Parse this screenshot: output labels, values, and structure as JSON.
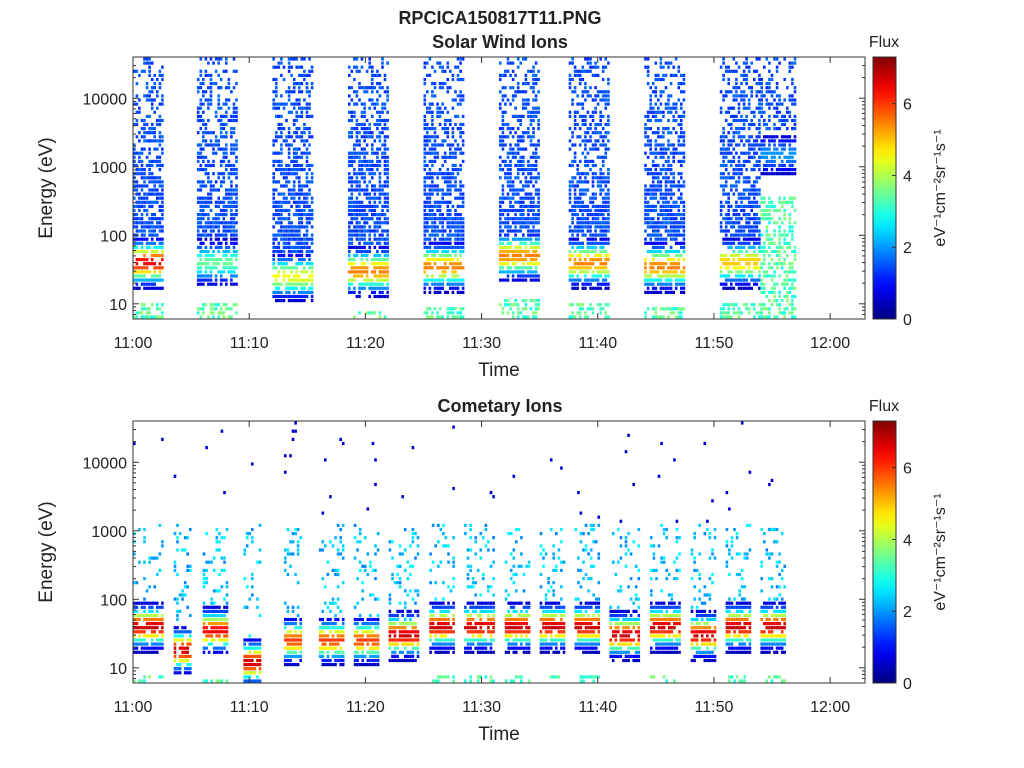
{
  "figure_title": "RPCICA150817T11.PNG",
  "chart_data": [
    {
      "type": "heatmap",
      "title": "Solar Wind Ions",
      "xlabel": "Time",
      "ylabel": "Energy (eV)",
      "y_scale": "log",
      "ylim": [
        6,
        40000
      ],
      "xlim": [
        "11:00",
        "12:03"
      ],
      "x_tick_labels": [
        "11:00",
        "11:10",
        "11:20",
        "11:30",
        "11:40",
        "11:50",
        "12:00"
      ],
      "y_tick_labels": [
        "10",
        "100",
        "1000",
        "10000"
      ],
      "colorbar": {
        "label": "Flux",
        "unit": "eV⁻¹cm⁻²sr⁻¹s⁻¹",
        "range": [
          0,
          7.3
        ],
        "ticks": [
          "0",
          "2",
          "4",
          "6"
        ],
        "colormap": "jet"
      },
      "bursts": [
        {
          "start": "11:00",
          "end": "11:02.5",
          "peak_energy_ev": 40,
          "peak_flux": 6.5
        },
        {
          "start": "11:05.5",
          "end": "11:09",
          "peak_energy_ev": 40,
          "peak_flux": 3.5
        },
        {
          "start": "11:12",
          "end": "11:15.5",
          "peak_energy_ev": 25,
          "peak_flux": 4.5
        },
        {
          "start": "11:18.5",
          "end": "11:22",
          "peak_energy_ev": 30,
          "peak_flux": 5.5
        },
        {
          "start": "11:25",
          "end": "11:28.5",
          "peak_energy_ev": 35,
          "peak_flux": 5.5
        },
        {
          "start": "11:31.5",
          "end": "11:35",
          "peak_energy_ev": 50,
          "peak_flux": 5.5
        },
        {
          "start": "11:37.5",
          "end": "11:41",
          "peak_energy_ev": 40,
          "peak_flux": 5.5
        },
        {
          "start": "11:44",
          "end": "11:47.5",
          "peak_energy_ev": 35,
          "peak_flux": 5.5
        },
        {
          "start": "11:50.5",
          "end": "11:54",
          "peak_energy_ev": 40,
          "peak_flux": 5.0
        },
        {
          "start": "11:54",
          "end": "11:57",
          "peak_energy_ev": 1500,
          "peak_flux": 2.0
        }
      ]
    },
    {
      "type": "heatmap",
      "title": "Cometary Ions",
      "xlabel": "Time",
      "ylabel": "Energy (eV)",
      "y_scale": "log",
      "ylim": [
        6,
        40000
      ],
      "xlim": [
        "11:00",
        "12:03"
      ],
      "x_tick_labels": [
        "11:00",
        "11:10",
        "11:20",
        "11:30",
        "11:40",
        "11:50",
        "12:00"
      ],
      "y_tick_labels": [
        "10",
        "100",
        "1000",
        "10000"
      ],
      "colorbar": {
        "label": "Flux",
        "unit": "eV⁻¹cm⁻²sr⁻¹s⁻¹",
        "range": [
          0,
          7.3
        ],
        "ticks": [
          "0",
          "2",
          "4",
          "6"
        ],
        "colormap": "jet"
      },
      "bursts": [
        {
          "start": "11:00",
          "end": "11:02.5",
          "peak_energy_ev": 40,
          "peak_flux": 6.8
        },
        {
          "start": "11:03.5",
          "end": "11:05",
          "peak_energy_ev": 18,
          "peak_flux": 6.8
        },
        {
          "start": "11:06",
          "end": "11:08",
          "peak_energy_ev": 35,
          "peak_flux": 6.5
        },
        {
          "start": "11:09.5",
          "end": "11:11",
          "peak_energy_ev": 12,
          "peak_flux": 6.8
        },
        {
          "start": "11:13",
          "end": "11:14.5",
          "peak_energy_ev": 25,
          "peak_flux": 6.0
        },
        {
          "start": "11:16",
          "end": "11:18",
          "peak_energy_ev": 25,
          "peak_flux": 6.0
        },
        {
          "start": "11:19",
          "end": "11:21",
          "peak_energy_ev": 25,
          "peak_flux": 6.0
        },
        {
          "start": "11:22",
          "end": "11:24.5",
          "peak_energy_ev": 30,
          "peak_flux": 6.8
        },
        {
          "start": "11:25.5",
          "end": "11:27.5",
          "peak_energy_ev": 40,
          "peak_flux": 6.8
        },
        {
          "start": "11:28.5",
          "end": "11:31",
          "peak_energy_ev": 40,
          "peak_flux": 6.8
        },
        {
          "start": "11:32",
          "end": "11:34",
          "peak_energy_ev": 40,
          "peak_flux": 6.8
        },
        {
          "start": "11:35",
          "end": "11:37",
          "peak_energy_ev": 40,
          "peak_flux": 6.8
        },
        {
          "start": "11:38",
          "end": "11:40",
          "peak_energy_ev": 40,
          "peak_flux": 6.8
        },
        {
          "start": "11:41",
          "end": "11:43.5",
          "peak_energy_ev": 30,
          "peak_flux": 6.8
        },
        {
          "start": "11:44.5",
          "end": "11:47",
          "peak_energy_ev": 40,
          "peak_flux": 6.8
        },
        {
          "start": "11:48",
          "end": "11:50",
          "peak_energy_ev": 30,
          "peak_flux": 6.8
        },
        {
          "start": "11:51",
          "end": "11:53",
          "peak_energy_ev": 40,
          "peak_flux": 6.8
        },
        {
          "start": "11:54",
          "end": "11:56",
          "peak_energy_ev": 40,
          "peak_flux": 6.8
        }
      ]
    }
  ]
}
